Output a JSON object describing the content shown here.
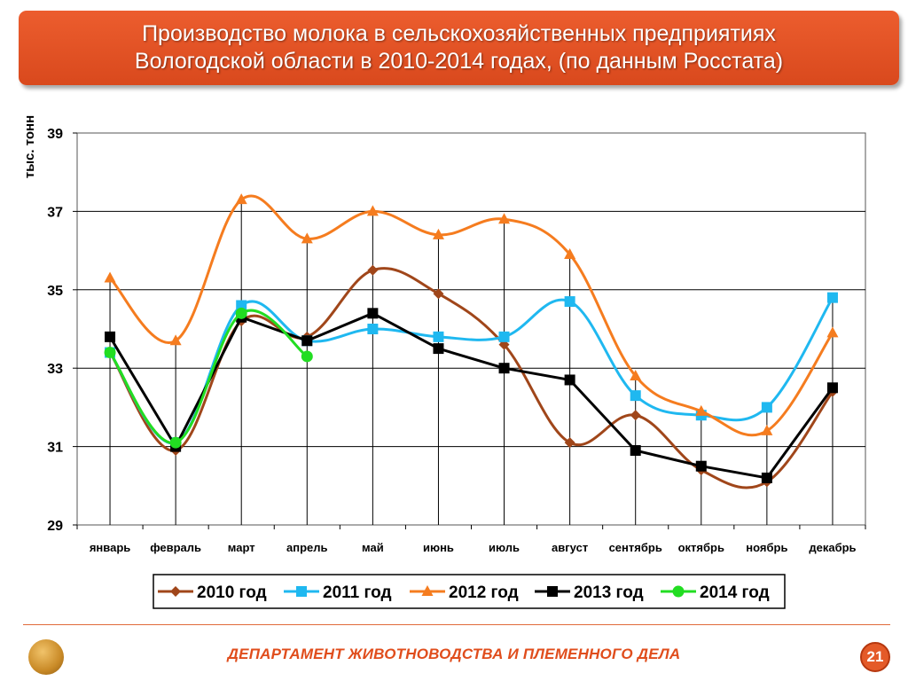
{
  "header": {
    "title_line1": "Производство молока в сельскохозяйственных предприятиях",
    "title_line2": "Вологодской области в 2010-2014 годах, (по данным Росстата)"
  },
  "footer": {
    "department": "ДЕПАРТАМЕНТ ЖИВОТНОВОДСТВА И ПЛЕМЕННОГО ДЕЛА",
    "page_number": "21",
    "logo_icon": "wheat-emblem-icon"
  },
  "chart_data": {
    "type": "line",
    "title": "",
    "xlabel": "",
    "ylabel": "тыс. тонн",
    "ylim": [
      29,
      39
    ],
    "yticks": [
      "29",
      "31",
      "33",
      "35",
      "37",
      "39"
    ],
    "grid": "horizontal",
    "legend_position": "bottom",
    "smoothed": true,
    "categories": [
      "январь",
      "февраль",
      "март",
      "апрель",
      "май",
      "июнь",
      "июль",
      "август",
      "сентябрь",
      "октябрь",
      "ноябрь",
      "декабрь"
    ],
    "series": [
      {
        "name": "2010 год",
        "color": "#a0461a",
        "marker": "diamond",
        "values": [
          33.4,
          30.9,
          34.2,
          33.8,
          35.5,
          34.9,
          33.6,
          31.1,
          31.8,
          30.4,
          30.1,
          32.4
        ]
      },
      {
        "name": "2011 год",
        "color": "#1fb8f0",
        "marker": "square",
        "values": [
          33.4,
          31.1,
          34.6,
          33.7,
          34.0,
          33.8,
          33.8,
          34.7,
          32.3,
          31.8,
          32.0,
          34.8
        ]
      },
      {
        "name": "2012 год",
        "color": "#f57c1f",
        "marker": "triangle",
        "values": [
          35.3,
          33.7,
          37.3,
          36.3,
          37.0,
          36.4,
          36.8,
          35.9,
          32.8,
          31.9,
          31.4,
          33.9
        ]
      },
      {
        "name": "2013 год",
        "color": "#000000",
        "marker": "square",
        "smoothed": false,
        "values": [
          33.8,
          31.0,
          34.3,
          33.7,
          34.4,
          33.5,
          33.0,
          32.7,
          30.9,
          30.5,
          30.2,
          32.5
        ]
      },
      {
        "name": "2014 год",
        "color": "#22dd22",
        "marker": "circle",
        "values": [
          33.4,
          31.1,
          34.4,
          33.3,
          null,
          null,
          null,
          null,
          null,
          null,
          null,
          null
        ]
      }
    ]
  }
}
